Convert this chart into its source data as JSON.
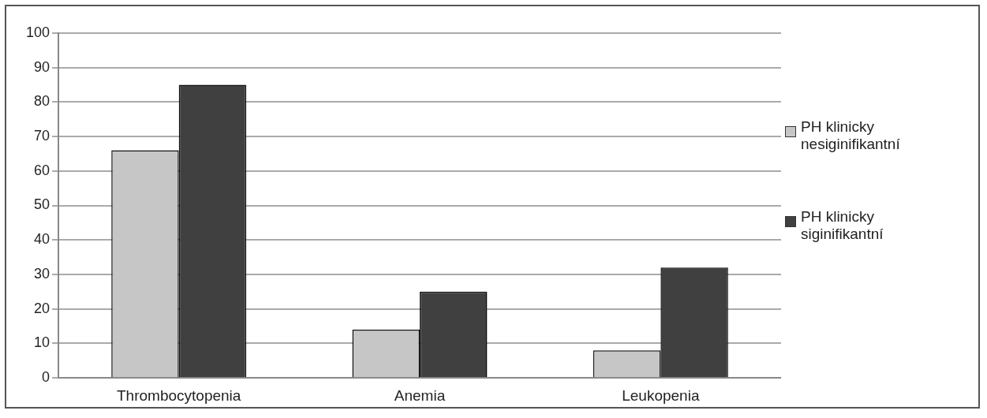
{
  "chart_data": {
    "type": "bar",
    "categories": [
      "Thrombocytopenia",
      "Anemia",
      "Leukopenia"
    ],
    "series": [
      {
        "name": "PH klinicky nesiginifikantní",
        "color": "#c6c6c6",
        "values": [
          66,
          14,
          8
        ]
      },
      {
        "name": "PH klinicky siginifikantní",
        "color": "#404040",
        "values": [
          85,
          25,
          32
        ]
      }
    ],
    "ylim": [
      0,
      100
    ],
    "yticks": [
      0,
      10,
      20,
      30,
      40,
      50,
      60,
      70,
      80,
      90,
      100
    ],
    "grid": "y",
    "legend": "right"
  }
}
